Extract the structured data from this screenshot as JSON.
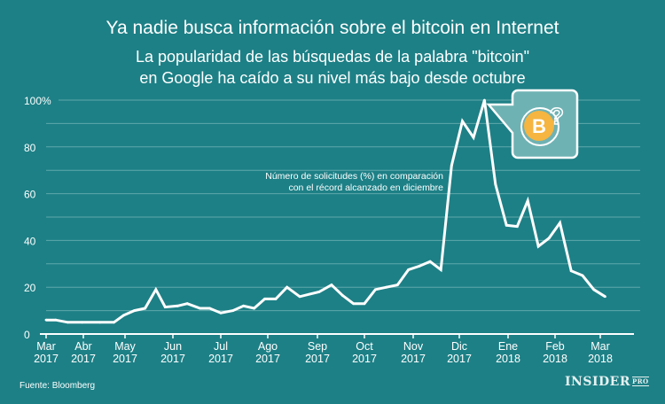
{
  "header": {
    "title": "Ya nadie busca información sobre el bitcoin en Internet",
    "subtitle_line1": "La popularidad de las búsquedas de la palabra \"bitcoin\"",
    "subtitle_line2": "en Google ha caído a su nivel más bajo desde octubre"
  },
  "footer": {
    "source": "Fuente: Bloomberg",
    "logo": "INSIDER",
    "logo_suffix": "PRO"
  },
  "colors": {
    "background": "#1d8086",
    "line": "#ffffff",
    "gridline": "#5fa8ab",
    "bitcoin": "#f5b540"
  },
  "icon": "bitcoin-question-icon",
  "chart_data": {
    "type": "line",
    "title": "Ya nadie busca información sobre el bitcoin en Internet",
    "annotation": [
      "Número de solicitudes (%) en comparación",
      "con el récord alcanzado en diciembre"
    ],
    "xlabel": "",
    "ylabel": "",
    "ylim": [
      0,
      100
    ],
    "yticks": [
      "0",
      "20",
      "40",
      "60",
      "80",
      "100%"
    ],
    "xticks": [
      {
        "date": "2017-03-01",
        "label": [
          "Mar",
          "2017"
        ]
      },
      {
        "date": "2017-04-01",
        "label": [
          "Abr",
          "2017"
        ]
      },
      {
        "date": "2017-05-01",
        "label": [
          "May",
          "2017"
        ]
      },
      {
        "date": "2017-06-01",
        "label": [
          "Jun",
          "2017"
        ]
      },
      {
        "date": "2017-07-01",
        "label": [
          "Jul",
          "2017"
        ]
      },
      {
        "date": "2017-08-01",
        "label": [
          "Ago",
          "2017"
        ]
      },
      {
        "date": "2017-09-01",
        "label": [
          "Sep",
          "2017"
        ]
      },
      {
        "date": "2017-10-01",
        "label": [
          "Oct",
          "2017"
        ]
      },
      {
        "date": "2017-11-01",
        "label": [
          "Nov",
          "2017"
        ]
      },
      {
        "date": "2017-12-01",
        "label": [
          "Dic",
          "2017"
        ]
      },
      {
        "date": "2018-01-01",
        "label": [
          "Ene",
          "2018"
        ]
      },
      {
        "date": "2018-02-01",
        "label": [
          "Feb",
          "2018"
        ]
      },
      {
        "date": "2018-03-01",
        "label": [
          "Mar",
          "2018"
        ]
      }
    ],
    "grid": true,
    "series": [
      {
        "values": [
          [
            "2017-03-01",
            6
          ],
          [
            "2017-03-09",
            6
          ],
          [
            "2017-03-19",
            5
          ],
          [
            "2017-03-31",
            5
          ],
          [
            "2017-04-13",
            5
          ],
          [
            "2017-04-23",
            5
          ],
          [
            "2017-04-30",
            8
          ],
          [
            "2017-05-07",
            10
          ],
          [
            "2017-05-14",
            11
          ],
          [
            "2017-05-21",
            19
          ],
          [
            "2017-05-27",
            11.5
          ],
          [
            "2017-06-04",
            12
          ],
          [
            "2017-06-10",
            13
          ],
          [
            "2017-06-18",
            11
          ],
          [
            "2017-06-24",
            11
          ],
          [
            "2017-07-01",
            9
          ],
          [
            "2017-07-09",
            10
          ],
          [
            "2017-07-16",
            12
          ],
          [
            "2017-07-23",
            11
          ],
          [
            "2017-07-30",
            15
          ],
          [
            "2017-08-06",
            15
          ],
          [
            "2017-08-13",
            20
          ],
          [
            "2017-08-21",
            16
          ],
          [
            "2017-08-27",
            17
          ],
          [
            "2017-09-02",
            18
          ],
          [
            "2017-09-10",
            21
          ],
          [
            "2017-09-17",
            16.5
          ],
          [
            "2017-09-24",
            13
          ],
          [
            "2017-10-01",
            13
          ],
          [
            "2017-10-08",
            19
          ],
          [
            "2017-10-15",
            20
          ],
          [
            "2017-10-22",
            21
          ],
          [
            "2017-10-29",
            27.5
          ],
          [
            "2017-11-05",
            29
          ],
          [
            "2017-11-12",
            31
          ],
          [
            "2017-11-19",
            27.5
          ],
          [
            "2017-11-26",
            72
          ],
          [
            "2017-12-03",
            91
          ],
          [
            "2017-12-10",
            84
          ],
          [
            "2017-12-17",
            100
          ],
          [
            "2017-12-24",
            64
          ],
          [
            "2017-12-31",
            46.5
          ],
          [
            "2018-01-07",
            46
          ],
          [
            "2018-01-14",
            57
          ],
          [
            "2018-01-21",
            37.5
          ],
          [
            "2018-01-28",
            41
          ],
          [
            "2018-02-04",
            47.5
          ],
          [
            "2018-02-11",
            27
          ],
          [
            "2018-02-18",
            25
          ],
          [
            "2018-02-25",
            19
          ],
          [
            "2018-03-04",
            16
          ]
        ]
      }
    ]
  }
}
